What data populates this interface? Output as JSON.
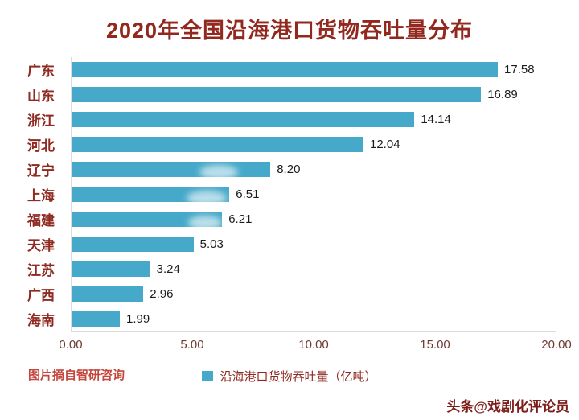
{
  "title": "2020年全国沿海港口货物吞吐量分布",
  "chart_data": {
    "type": "bar",
    "orientation": "horizontal",
    "title": "2020年全国沿海港口货物吞吐量分布",
    "categories": [
      "广东",
      "山东",
      "浙江",
      "河北",
      "辽宁",
      "上海",
      "福建",
      "天津",
      "江苏",
      "广西",
      "海南"
    ],
    "values": [
      17.58,
      16.89,
      14.14,
      12.04,
      8.2,
      6.51,
      6.21,
      5.03,
      3.24,
      2.96,
      1.99
    ],
    "value_labels": [
      "17.58",
      "16.89",
      "14.14",
      "12.04",
      "8.20",
      "6.51",
      "6.21",
      "5.03",
      "3.24",
      "2.96",
      "1.99"
    ],
    "xlim": [
      0,
      20
    ],
    "x_ticks": [
      "0.00",
      "5.00",
      "10.00",
      "15.00",
      "20.00"
    ],
    "legend": "沿海港口货物吞吐量（亿吨）",
    "legend_position": "bottom",
    "grid": false,
    "bar_color": "#47a9c9"
  },
  "footer": {
    "source": "图片摘自智研咨询",
    "credit": "头条@戏剧化评论员"
  },
  "colors": {
    "bar": "#47a9c9",
    "title_text": "#93281f",
    "category_text": "#8e2a21",
    "axis_text": "#6e3b32",
    "source_text": "#c4463c",
    "credit_text": "#7d1d1a",
    "background": "#ffffff"
  }
}
